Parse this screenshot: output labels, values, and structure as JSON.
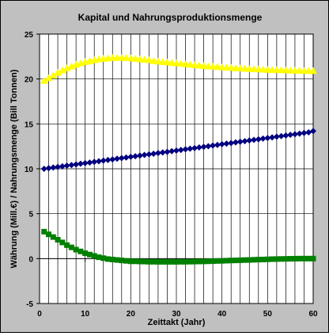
{
  "chart_data": {
    "type": "line",
    "title": "Kapital und Nahrungsproduktionsmenge",
    "xlabel": "Zeittakt (Jahr)",
    "ylabel": "Währung (Mill.€) / Nahrungsmenge (Bill Tonnen)",
    "xlim": [
      0,
      60
    ],
    "ylim": [
      -5,
      25
    ],
    "x_ticks": [
      "0",
      "10",
      "20",
      "30",
      "40",
      "50",
      "60"
    ],
    "y_ticks": [
      "-5",
      "0",
      "5",
      "10",
      "15",
      "20",
      "25"
    ],
    "grid": true,
    "legend": "none",
    "plot_background": "#ffffff",
    "background": "#c0c0c0",
    "x": [
      1,
      2,
      3,
      4,
      5,
      6,
      7,
      8,
      9,
      10,
      11,
      12,
      13,
      14,
      15,
      16,
      17,
      18,
      19,
      20,
      21,
      22,
      23,
      24,
      25,
      26,
      27,
      28,
      29,
      30,
      31,
      32,
      33,
      34,
      35,
      36,
      37,
      38,
      39,
      40,
      41,
      42,
      43,
      44,
      45,
      46,
      47,
      48,
      49,
      50,
      51,
      52,
      53,
      54,
      55,
      56,
      57,
      58,
      59,
      60
    ],
    "series": [
      {
        "color": "#ffff00",
        "marker": "triangle",
        "values": [
          19.8,
          20.1,
          20.4,
          20.7,
          20.95,
          21.2,
          21.4,
          21.6,
          21.75,
          21.9,
          22.0,
          22.1,
          22.2,
          22.25,
          22.3,
          22.35,
          22.35,
          22.35,
          22.35,
          22.3,
          22.25,
          22.2,
          22.15,
          22.1,
          22.0,
          21.95,
          21.9,
          21.85,
          21.8,
          21.75,
          21.7,
          21.65,
          21.6,
          21.55,
          21.5,
          21.45,
          21.4,
          21.38,
          21.35,
          21.3,
          21.28,
          21.25,
          21.2,
          21.18,
          21.15,
          21.12,
          21.1,
          21.08,
          21.05,
          21.02,
          21.0,
          21.0,
          20.98,
          20.96,
          20.95,
          20.93,
          20.92,
          20.9,
          20.9,
          20.9
        ]
      },
      {
        "color": "#000080",
        "marker": "diamond",
        "values": [
          10.0,
          10.07,
          10.14,
          10.21,
          10.28,
          10.35,
          10.42,
          10.49,
          10.56,
          10.63,
          10.7,
          10.77,
          10.84,
          10.91,
          10.98,
          11.05,
          11.12,
          11.19,
          11.26,
          11.33,
          11.4,
          11.47,
          11.54,
          11.61,
          11.68,
          11.75,
          11.82,
          11.89,
          11.96,
          12.03,
          12.1,
          12.17,
          12.24,
          12.31,
          12.38,
          12.45,
          12.52,
          12.59,
          12.66,
          12.73,
          12.8,
          12.87,
          12.94,
          13.01,
          13.08,
          13.15,
          13.22,
          13.29,
          13.36,
          13.43,
          13.5,
          13.57,
          13.64,
          13.71,
          13.78,
          13.85,
          13.92,
          13.99,
          14.06,
          14.2
        ]
      },
      {
        "color": "#008000",
        "marker": "square",
        "values": [
          3.0,
          2.7,
          2.4,
          2.1,
          1.8,
          1.5,
          1.25,
          1.0,
          0.8,
          0.6,
          0.45,
          0.3,
          0.15,
          0.05,
          -0.05,
          -0.1,
          -0.15,
          -0.2,
          -0.25,
          -0.3,
          -0.3,
          -0.32,
          -0.33,
          -0.35,
          -0.35,
          -0.36,
          -0.36,
          -0.36,
          -0.36,
          -0.36,
          -0.35,
          -0.35,
          -0.34,
          -0.33,
          -0.32,
          -0.31,
          -0.3,
          -0.28,
          -0.26,
          -0.25,
          -0.23,
          -0.21,
          -0.2,
          -0.18,
          -0.16,
          -0.15,
          -0.13,
          -0.11,
          -0.1,
          -0.08,
          -0.06,
          -0.05,
          -0.04,
          -0.03,
          -0.02,
          -0.01,
          0.0,
          0.0,
          0.0,
          0.0
        ]
      }
    ]
  }
}
